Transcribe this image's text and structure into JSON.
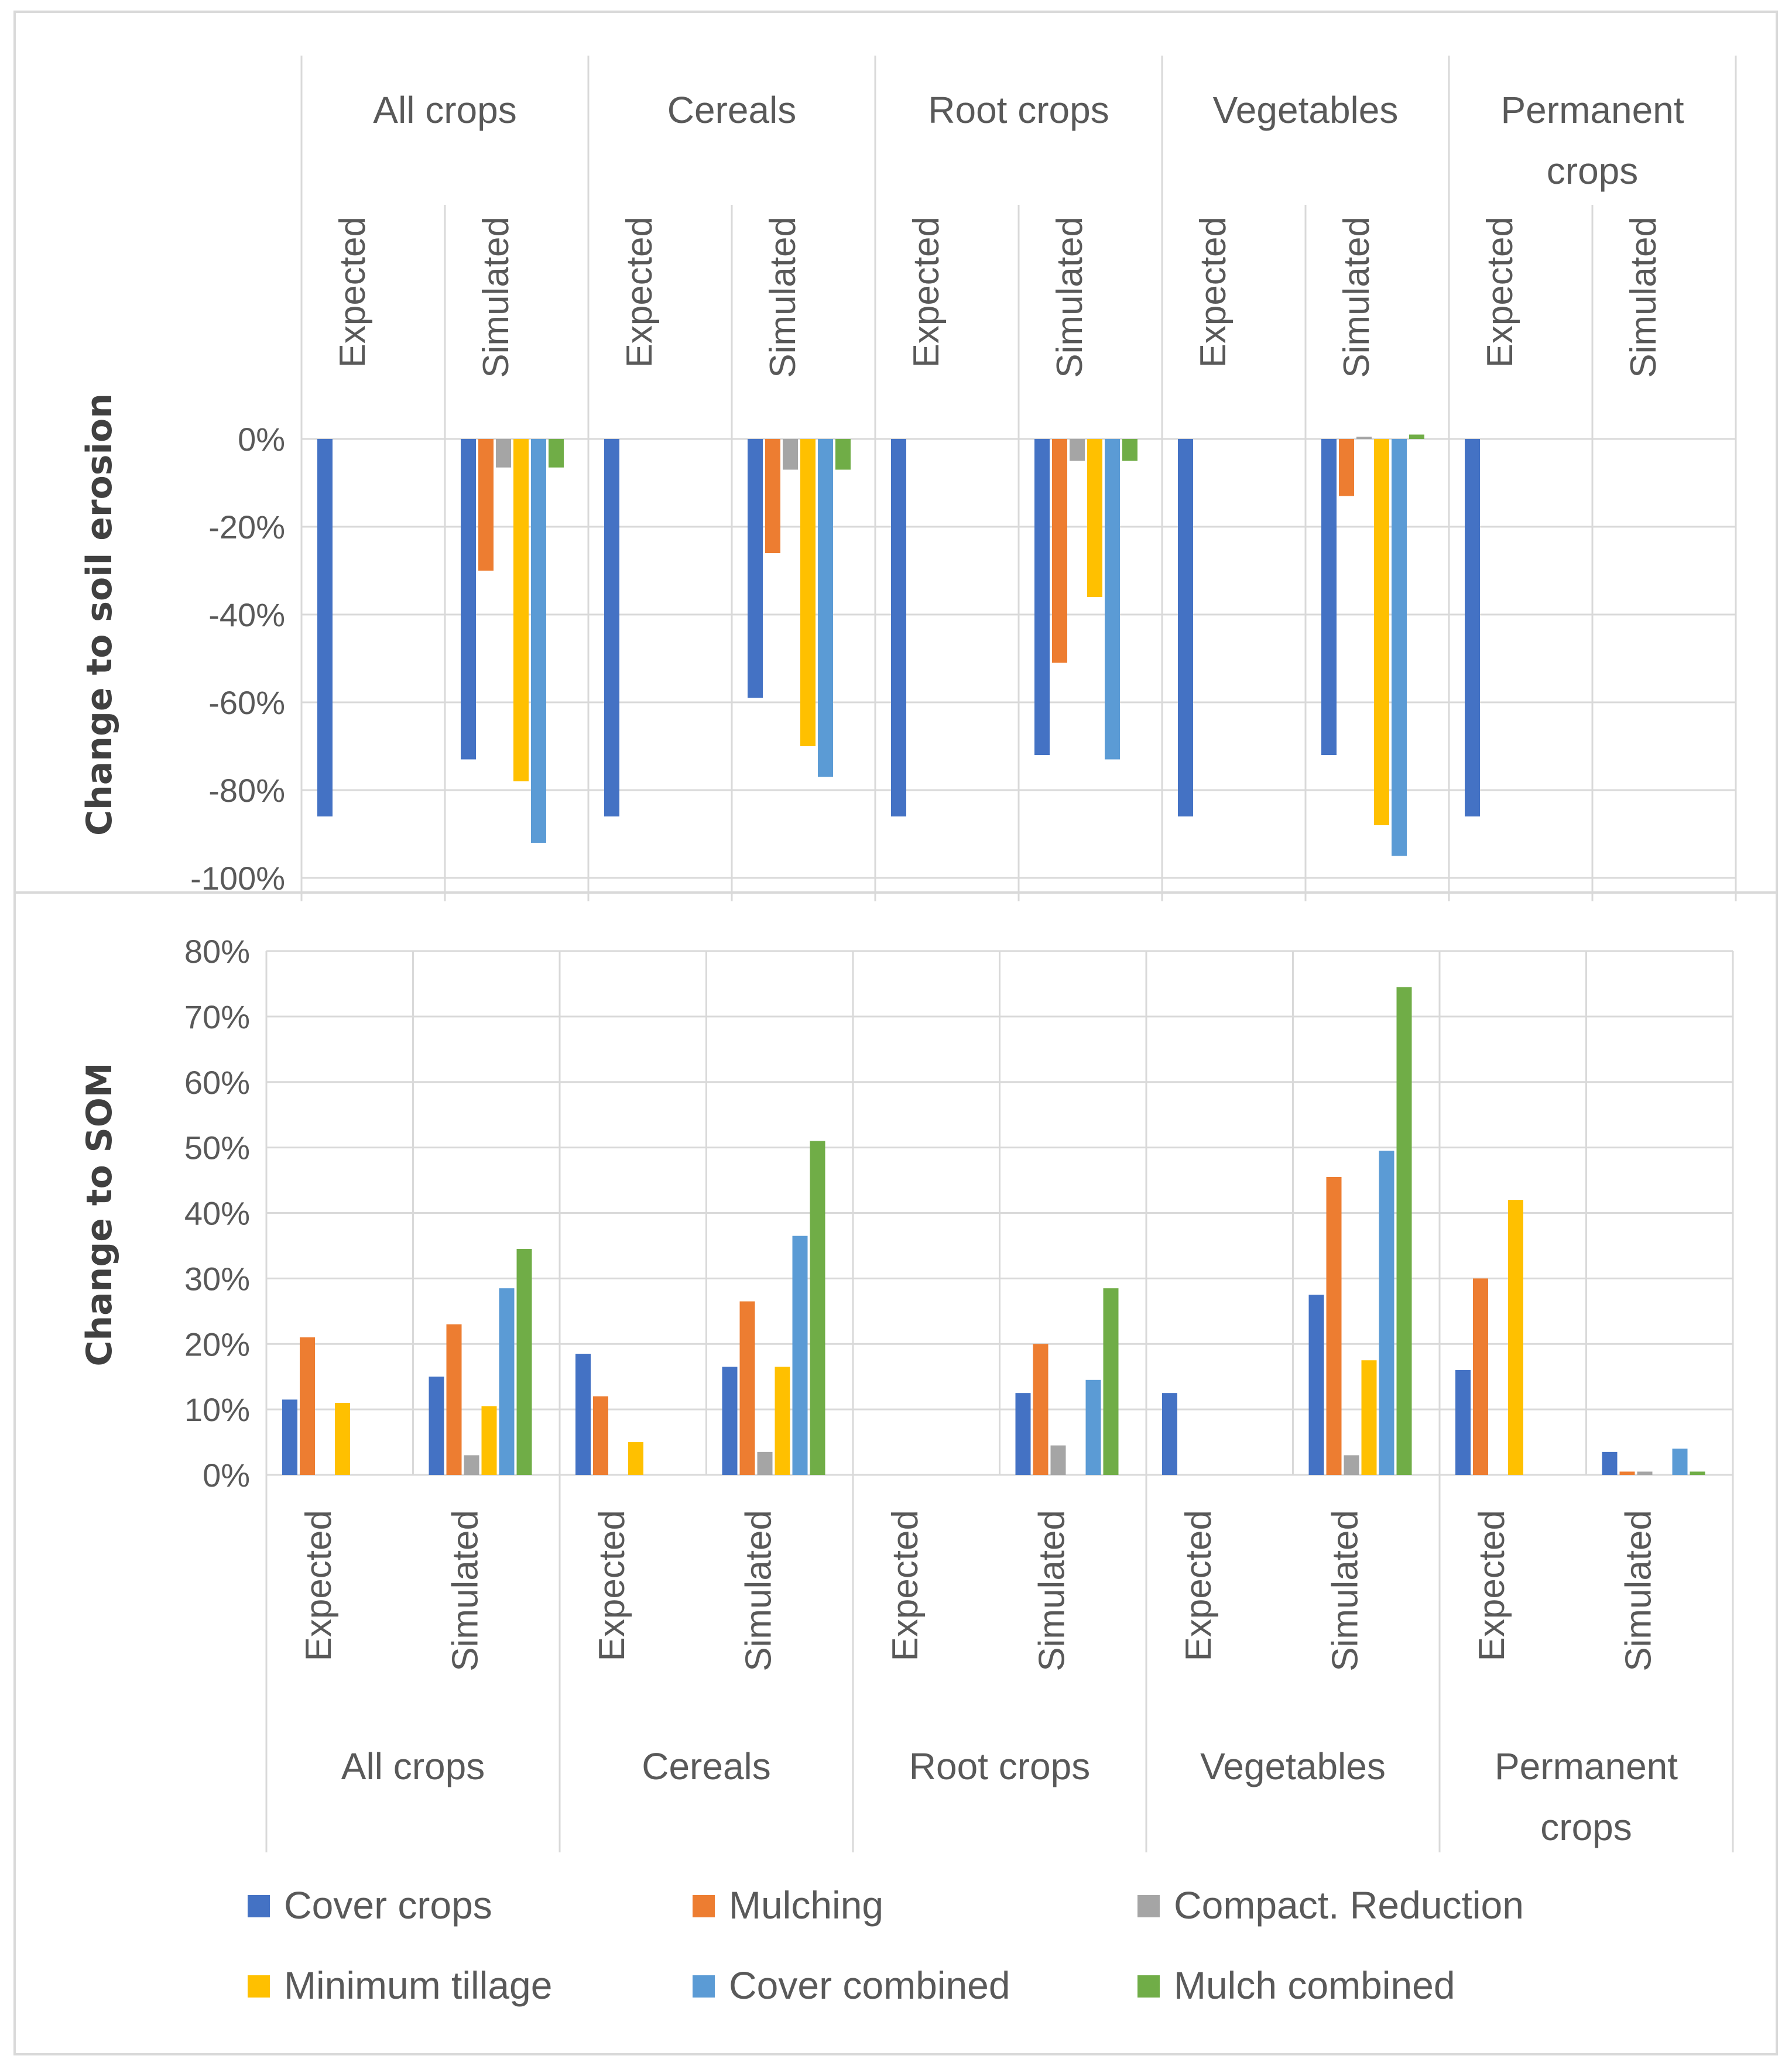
{
  "colors": {
    "Cover crops": "#4472C4",
    "Mulching": "#ED7D31",
    "Compact. Reduction": "#A5A5A5",
    "Minimum tillage": "#FFC000",
    "Cover combined": "#5B9BD5",
    "Mulch combined": "#70AD47",
    "grid": "#D9D9D9",
    "text": "#595959"
  },
  "legend": {
    "placement": "bottom",
    "items": [
      "Cover crops",
      "Mulching",
      "Compact. Reduction",
      "Minimum tillage",
      "Cover combined",
      "Mulch combined"
    ]
  },
  "chart_data": [
    {
      "type": "bar",
      "ylabel": "Change to soil erosion",
      "ylim": [
        -1.0,
        0.0
      ],
      "yticks": [
        "0%",
        "-20%",
        "-40%",
        "-60%",
        "-80%",
        "-100%"
      ],
      "groups": [
        "All crops",
        "Cereals",
        "Root crops",
        "Vegetables",
        "Permanent crops"
      ],
      "subcategories": [
        "Expected",
        "Simulated"
      ],
      "grid": true,
      "series": [
        {
          "name": "Cover crops",
          "values": [
            -0.86,
            -0.73,
            -0.86,
            -0.59,
            -0.86,
            -0.72,
            -0.86,
            -0.72,
            -0.86,
            null
          ]
        },
        {
          "name": "Mulching",
          "values": [
            null,
            -0.3,
            null,
            -0.26,
            null,
            -0.51,
            null,
            -0.13,
            null,
            null
          ]
        },
        {
          "name": "Compact. Reduction",
          "values": [
            null,
            -0.065,
            null,
            -0.07,
            null,
            -0.05,
            null,
            0.005,
            null,
            null
          ]
        },
        {
          "name": "Minimum tillage",
          "values": [
            null,
            -0.78,
            null,
            -0.7,
            null,
            -0.36,
            null,
            -0.88,
            null,
            null
          ]
        },
        {
          "name": "Cover combined",
          "values": [
            null,
            -0.92,
            null,
            -0.77,
            null,
            -0.73,
            null,
            -0.95,
            null,
            null
          ]
        },
        {
          "name": "Mulch combined",
          "values": [
            null,
            -0.065,
            null,
            -0.07,
            null,
            -0.05,
            null,
            0.01,
            null,
            null
          ]
        }
      ]
    },
    {
      "type": "bar",
      "ylabel": "Change to SOM",
      "ylim": [
        0.0,
        0.8
      ],
      "yticks": [
        "80%",
        "70%",
        "60%",
        "50%",
        "40%",
        "30%",
        "20%",
        "10%",
        "0%"
      ],
      "groups": [
        "All crops",
        "Cereals",
        "Root crops",
        "Vegetables",
        "Permanent crops"
      ],
      "subcategories": [
        "Expected",
        "Simulated"
      ],
      "grid": true,
      "series": [
        {
          "name": "Cover crops",
          "values": [
            0.115,
            0.15,
            0.185,
            0.165,
            null,
            0.125,
            0.125,
            0.275,
            0.16,
            0.035
          ]
        },
        {
          "name": "Mulching",
          "values": [
            0.21,
            0.23,
            0.12,
            0.265,
            null,
            0.2,
            null,
            0.455,
            0.3,
            0.005
          ]
        },
        {
          "name": "Compact. Reduction",
          "values": [
            null,
            0.03,
            null,
            0.035,
            null,
            0.045,
            null,
            0.03,
            null,
            0.005
          ]
        },
        {
          "name": "Minimum tillage",
          "values": [
            0.11,
            0.105,
            0.05,
            0.165,
            null,
            null,
            null,
            0.175,
            0.42,
            null
          ]
        },
        {
          "name": "Cover combined",
          "values": [
            null,
            0.285,
            null,
            0.365,
            null,
            0.145,
            null,
            0.495,
            null,
            0.04
          ]
        },
        {
          "name": "Mulch combined",
          "values": [
            null,
            0.345,
            null,
            0.51,
            null,
            0.285,
            null,
            0.745,
            null,
            0.005
          ]
        }
      ]
    }
  ]
}
